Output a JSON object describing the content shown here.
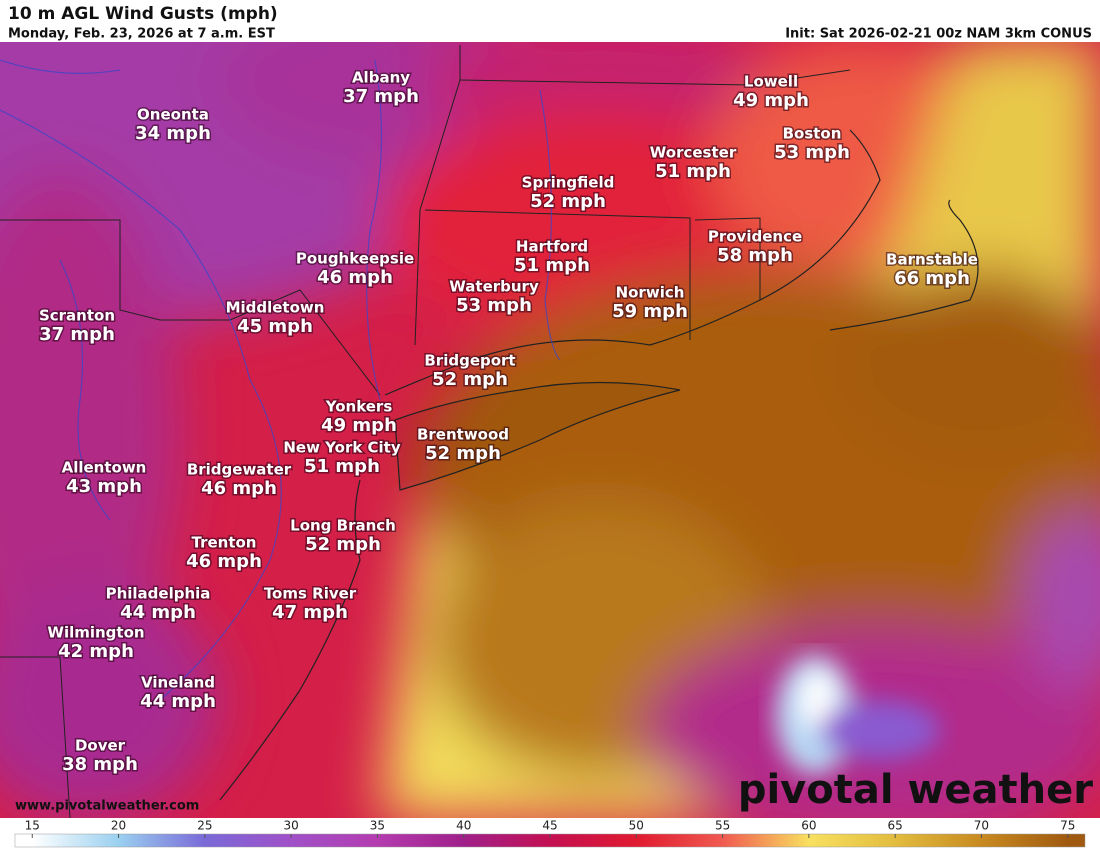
{
  "header": {
    "title": "10 m AGL Wind Gusts (mph)",
    "subtitle": "Monday, Feb. 23, 2026 at 7 a.m. EST",
    "init": "Init: Sat 2026-02-21 00z NAM 3km CONUS"
  },
  "cities": [
    {
      "name": "Albany",
      "label": "37 mph"
    },
    {
      "name": "Oneonta",
      "label": "34 mph"
    },
    {
      "name": "Lowell",
      "label": "49 mph"
    },
    {
      "name": "Boston",
      "label": "53 mph"
    },
    {
      "name": "Worcester",
      "label": "51 mph"
    },
    {
      "name": "Springfield",
      "label": "52 mph"
    },
    {
      "name": "Poughkeepsie",
      "label": "46 mph"
    },
    {
      "name": "Hartford",
      "label": "51 mph"
    },
    {
      "name": "Providence",
      "label": "58 mph"
    },
    {
      "name": "Barnstable",
      "label": "66 mph"
    },
    {
      "name": "Waterbury",
      "label": "53 mph"
    },
    {
      "name": "Norwich",
      "label": "59 mph"
    },
    {
      "name": "Middletown",
      "label": "45 mph"
    },
    {
      "name": "Scranton",
      "label": "37 mph"
    },
    {
      "name": "Bridgeport",
      "label": "52 mph"
    },
    {
      "name": "Yonkers",
      "label": "49 mph"
    },
    {
      "name": "New York City",
      "label": "51 mph"
    },
    {
      "name": "Brentwood",
      "label": "52 mph"
    },
    {
      "name": "Allentown",
      "label": "43 mph"
    },
    {
      "name": "Bridgewater",
      "label": "46 mph"
    },
    {
      "name": "Long Branch",
      "label": "52 mph"
    },
    {
      "name": "Trenton",
      "label": "46 mph"
    },
    {
      "name": "Philadelphia",
      "label": "44 mph"
    },
    {
      "name": "Toms River",
      "label": "47 mph"
    },
    {
      "name": "Wilmington",
      "label": "42 mph"
    },
    {
      "name": "Vineland",
      "label": "44 mph"
    },
    {
      "name": "Dover",
      "label": "38 mph"
    }
  ],
  "colorbar": {
    "range": [
      14,
      76
    ],
    "ticks": [
      15,
      20,
      25,
      30,
      35,
      40,
      45,
      50,
      55,
      60,
      65,
      70,
      75
    ],
    "stops": [
      {
        "value": 15,
        "color": "#ffffff"
      },
      {
        "value": 20,
        "color": "#9ad0f0"
      },
      {
        "value": 25,
        "color": "#7a6ad8"
      },
      {
        "value": 30,
        "color": "#a050c8"
      },
      {
        "value": 35,
        "color": "#b43cb0"
      },
      {
        "value": 40,
        "color": "#a0208a"
      },
      {
        "value": 45,
        "color": "#c41052"
      },
      {
        "value": 50,
        "color": "#e01a30"
      },
      {
        "value": 55,
        "color": "#f05a50"
      },
      {
        "value": 60,
        "color": "#f8e060"
      },
      {
        "value": 65,
        "color": "#e2bc3e"
      },
      {
        "value": 70,
        "color": "#c88a20"
      },
      {
        "value": 75,
        "color": "#a05a10"
      }
    ]
  },
  "footer": {
    "website": "www.pivotalweather.com",
    "watermark": "pivotal weather"
  }
}
